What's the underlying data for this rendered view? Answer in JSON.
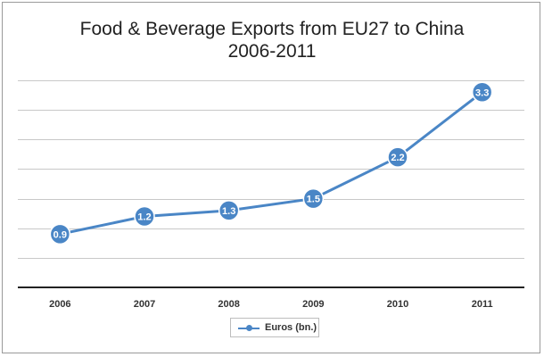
{
  "chart_data": {
    "type": "line",
    "title_line1": "Food & Beverage Exports from EU27 to China",
    "title_line2": "2006-2011",
    "categories": [
      "2006",
      "2007",
      "2008",
      "2009",
      "2010",
      "2011"
    ],
    "series": [
      {
        "name": "Euros (bn.)",
        "values": [
          0.9,
          1.2,
          1.3,
          1.5,
          2.2,
          3.3
        ],
        "color": "#4a86c6"
      }
    ],
    "data_labels": [
      "0.9",
      "1.2",
      "1.3",
      "1.5",
      "2.2",
      "3.3"
    ],
    "ylim": [
      0,
      3.5
    ],
    "grid": true,
    "legend": "bottom"
  }
}
